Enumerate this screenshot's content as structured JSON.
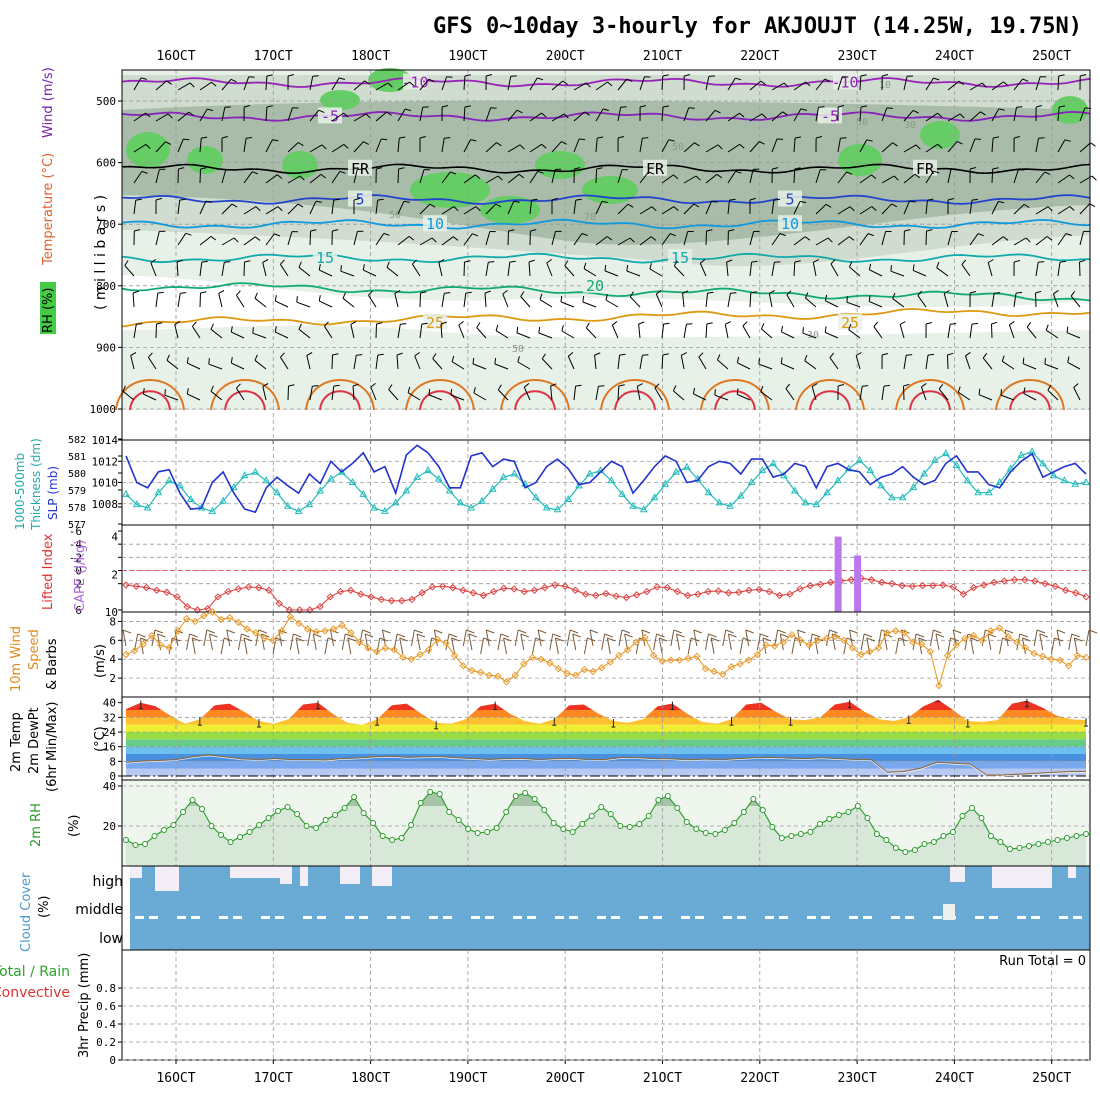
{
  "title": "GFS 0~10day 3-hourly for AKJOUJT (14.25W, 19.75N)",
  "time_axis": [
    "16OCT",
    "17OCT",
    "18OCT",
    "19OCT",
    "20OCT",
    "21OCT",
    "22OCT",
    "23OCT",
    "24OCT",
    "25OCT"
  ],
  "panel_labels": {
    "p1_rh": "RH (%)",
    "p1_temp": "Temperature (°C)",
    "p1_wind": "Wind (m/s)",
    "p1_units": "( m i l l i b a r s )",
    "p2_thick1": "1000-500mb",
    "p2_thick2": "Thickness (dm)",
    "p2_slp": "SLP (mb)",
    "p3_li": "Lifted Index",
    "p3_cape": "CAPE (J/kg)",
    "p4_a": "10m Wind",
    "p4_b": "Speed",
    "p4_c": "& Barbs",
    "p4_units": "(m/s)",
    "p5_a": "2m Temp",
    "p5_b": "2m DewPt",
    "p5_c": "(6hr Min/Max)",
    "p5_units": "(°C)",
    "p6_a": "2m RH",
    "p6_units": "(%)",
    "p7_a": "Cloud Cover",
    "p7_units": "(%)",
    "p8_a": "Total / Rain",
    "p8_b": "Convective",
    "p8_c": "3hr Precip (mm)",
    "run_total": "Run Total = 0"
  },
  "contour_labels": {
    "fr": "FR",
    "t_m10": "-10",
    "t_m5": "-5",
    "t_5": "5",
    "t_10": "10",
    "t_15": "15",
    "t_20": "20",
    "t_25": "25",
    "rh_50": "50",
    "rh_30": "30",
    "rh_70": "70",
    "rh_10": "10"
  },
  "colors": {
    "rh_dark": "#a9bca9",
    "rh_mid": "#cfdccf",
    "rh_light": "#e8f1e8",
    "rh_green": "#66cc66",
    "slp": "#2233cc",
    "thickness": "#22bbbb",
    "li": "#dd4444",
    "cape": "#bb77ee",
    "wind_speed": "#e89a2a",
    "dewpt": "#8a6a40",
    "rh2m": "#2a9a2a",
    "cloud": "#6aabd6",
    "cloud_gap": "#f3eef6"
  },
  "chart_data": [
    {
      "type": "heatmap",
      "title": "Pressure-level RH / Temperature / Wind",
      "ylabel": "millibars",
      "y_ticks": [
        500,
        600,
        700,
        800,
        900,
        1000
      ],
      "ylim": [
        450,
        1000
      ],
      "x": [
        "16OCT",
        "17OCT",
        "18OCT",
        "19OCT",
        "20OCT",
        "21OCT",
        "22OCT",
        "23OCT",
        "24OCT",
        "25OCT"
      ],
      "temperature_isotherms_c": [
        -10,
        -5,
        0,
        5,
        10,
        15,
        20,
        25,
        30,
        35
      ],
      "isotherm_levels_mb": {
        "-10": 470,
        "-5": 525,
        "0": 610,
        "5": 660,
        "10": 700,
        "15": 755,
        "20": 800,
        "25": 860
      }
    },
    {
      "type": "line",
      "title": "1000-500mb Thickness & SLP",
      "series": [
        {
          "name": "SLP (mb)",
          "axis": "right",
          "ylim": [
            1006,
            1014
          ],
          "values": [
            1012.5,
            1010,
            1009.5,
            1011,
            1011.2,
            1009,
            1007.5,
            1007.6,
            1010,
            1011,
            1009,
            1007.5,
            1007.2,
            1009.5,
            1010.5,
            1009.7,
            1009,
            1010.8,
            1009.9,
            1012,
            1011,
            1011.8,
            1012.8,
            1011,
            1011.5,
            1009,
            1012.6,
            1013.5,
            1012.8,
            1011.5,
            1009.5,
            1009.5,
            1012.5,
            1012.8,
            1011.5,
            1012.2,
            1012,
            1009.5,
            1010,
            1011.5,
            1012.2,
            1011.3,
            1009.8,
            1010,
            1011,
            1012,
            1011.5,
            1009,
            1010.2,
            1011.5,
            1012.5,
            1012,
            1010,
            1010.2,
            1011.5,
            1012,
            1011.8,
            1010.8,
            1012.2,
            1012.2,
            1010.5,
            1010.8,
            1011.8,
            1011.5,
            1009.5,
            1011.5,
            1011.8,
            1011.2,
            1011,
            1009.8,
            1010.5,
            1010.8,
            1011.5,
            1010.5,
            1009.8,
            1010.2,
            1011.8,
            1012.5,
            1011,
            1011,
            1009.8,
            1009.5,
            1011,
            1012,
            1012.7,
            1010.5,
            1011,
            1011.5,
            1011.8,
            1010.8
          ]
        },
        {
          "name": "1000-500mb Thickness (dm)",
          "axis": "left",
          "ylim": [
            577,
            582
          ],
          "values": [
            578.8,
            578.2,
            578.0,
            578.9,
            579.6,
            579.3,
            578.5,
            578.0,
            577.8,
            578.4,
            579.2,
            579.9,
            580.1,
            579.6,
            578.9,
            578.1,
            577.8,
            578.2,
            579.0,
            579.7,
            580.1,
            579.5,
            578.8,
            578.0,
            577.8,
            578.3,
            579.0,
            579.8,
            580.2,
            579.7,
            579.0,
            578.3,
            578.0,
            578.4,
            579.1,
            579.8,
            580.0,
            579.4,
            578.6,
            578.0,
            577.9,
            578.5,
            579.3,
            580.0,
            580.2,
            579.6,
            578.8,
            578.1,
            577.9,
            578.6,
            579.4,
            580.1,
            580.4,
            579.7,
            578.9,
            578.3,
            578.1,
            578.7,
            579.5,
            580.2,
            580.6,
            579.9,
            579.0,
            578.3,
            578.2,
            578.9,
            579.6,
            580.3,
            580.8,
            580.2,
            579.3,
            578.6,
            578.6,
            579.2,
            580.0,
            580.8,
            581.2,
            580.5,
            579.6,
            578.9,
            578.9,
            579.5,
            580.3,
            581.1,
            581.3,
            580.6,
            579.9,
            579.6,
            579.4,
            579.5
          ]
        }
      ]
    },
    {
      "type": "bar",
      "title": "Lifted Index & CAPE",
      "series": [
        {
          "name": "Lifted Index",
          "ylim": [
            6,
            -6
          ],
          "ticks": [
            6,
            2,
            0,
            -2,
            -4,
            -6
          ],
          "values": [
            2.2,
            2.4,
            2.6,
            3.0,
            3.3,
            4.0,
            5.5,
            6.0,
            5.8,
            4.0,
            3.2,
            2.8,
            2.5,
            2.6,
            3.0,
            5.0,
            6.0,
            6.0,
            6.0,
            5.5,
            4.0,
            3.2,
            3.0,
            3.6,
            4.0,
            4.4,
            4.6,
            4.6,
            4.4,
            3.4,
            2.5,
            2.4,
            2.6,
            3.0,
            3.4,
            3.8,
            3.2,
            2.7,
            2.8,
            3.2,
            3.0,
            2.6,
            2.2,
            2.4,
            3.0,
            3.6,
            3.8,
            3.5,
            3.9,
            4.1,
            3.7,
            3.2,
            2.5,
            2.6,
            3.2,
            3.8,
            3.6,
            3.2,
            3.1,
            3.4,
            3.3,
            3.0,
            2.9,
            3.2,
            3.8,
            3.6,
            2.8,
            2.3,
            2.1,
            1.8,
            1.6,
            1.4,
            1.2,
            1.4,
            1.8,
            2.0,
            2.3,
            2.4,
            2.3,
            2.3,
            2.2,
            2.5,
            3.6,
            2.6,
            2.2,
            1.8,
            1.6,
            1.4,
            1.4,
            1.6,
            2.0,
            2.4,
            3.0,
            3.4,
            4.0
          ]
        },
        {
          "name": "CAPE (J/kg)",
          "ylim": [
            0,
            4.3
          ],
          "ticks": [
            0,
            2,
            4
          ],
          "bars": [
            {
              "x": "22.8OCT",
              "value": 4.0
            },
            {
              "x": "23.0OCT",
              "value": 3.0
            }
          ]
        }
      ]
    },
    {
      "type": "line",
      "title": "10m Wind Speed & Barbs",
      "ylabel": "m/s",
      "ylim": [
        0,
        9
      ],
      "ticks": [
        2,
        4,
        6,
        8
      ],
      "values": [
        4.5,
        4.9,
        5.6,
        6.5,
        5.5,
        5.2,
        7.0,
        8.3,
        8.0,
        8.6,
        9.0,
        8.2,
        8.4,
        7.9,
        7.2,
        6.8,
        6.2,
        6.0,
        7.0,
        8.5,
        7.8,
        7.2,
        6.9,
        7.0,
        7.2,
        7.6,
        6.8,
        5.8,
        5.2,
        4.8,
        5.2,
        5.0,
        4.2,
        4.0,
        4.5,
        5.0,
        6.1,
        5.7,
        4.4,
        3.3,
        2.8,
        2.6,
        2.3,
        2.2,
        1.6,
        2.3,
        3.5,
        4.2,
        4.0,
        3.6,
        3.0,
        2.5,
        2.3,
        2.9,
        2.7,
        3.1,
        3.7,
        4.4,
        5.0,
        5.8,
        6.3,
        4.4,
        3.8,
        3.9,
        3.9,
        4.1,
        4.3,
        3.0,
        2.7,
        2.4,
        3.2,
        3.5,
        3.9,
        4.5,
        5.5,
        5.4,
        5.8,
        6.6,
        6.0,
        5.5,
        6.0,
        6.2,
        6.4,
        6.0,
        5.2,
        4.5,
        4.8,
        5.2,
        6.8,
        7.0,
        6.8,
        5.8,
        5.6,
        4.8,
        1.2,
        4.4,
        5.5,
        6.2,
        6.5,
        6.0,
        7.0,
        7.3,
        6.4,
        5.8,
        5.2,
        4.6,
        4.3,
        4.0,
        3.9,
        3.3,
        4.4,
        4.2
      ]
    },
    {
      "type": "area",
      "title": "2m Temp / 2m DewPt (6hr Min/Max)",
      "ylabel": "°C",
      "ylim": [
        0,
        42
      ],
      "ticks": [
        0,
        8,
        16,
        24,
        32,
        40
      ],
      "series": [
        {
          "name": "2m Temp",
          "values": [
            36.5,
            40,
            38,
            33,
            28.5,
            31,
            38.5,
            39.5,
            35,
            30,
            28.5,
            31,
            39,
            40,
            34,
            29,
            28,
            31,
            38.5,
            39.5,
            34,
            29,
            28.5,
            31,
            38,
            39.5,
            34,
            30,
            28.5,
            31,
            38.5,
            39,
            34,
            30,
            29,
            31,
            38,
            39.5,
            34,
            29.5,
            28.5,
            31,
            39,
            40,
            35,
            31,
            30.5,
            32,
            39,
            40.5,
            35,
            31,
            30,
            32,
            38,
            41.5,
            36,
            30,
            29.5,
            30.5,
            39.5,
            41,
            37.5,
            33,
            31,
            30.5
          ]
        },
        {
          "name": "2m DewPt",
          "values": [
            7.5,
            8.2,
            8.5,
            9.0,
            10.5,
            11.5,
            10.5,
            9.4,
            9.0,
            9.5,
            9.0,
            9.0,
            8.8,
            9.5,
            9.9,
            10.5,
            10.8,
            10.2,
            10.5,
            10.6,
            10.0,
            9.5,
            9.1,
            9.5,
            9.6,
            9.0,
            9.5,
            9.6,
            9.0,
            9.1,
            10.2,
            10.0,
            9.5,
            9.4,
            8.9,
            9.2,
            9.0,
            9.5,
            10.0,
            10.2,
            9.8,
            9.5,
            10.0,
            9.5,
            9.1,
            9.0,
            2.0,
            2.5,
            4.2,
            7.5,
            7.0,
            6.5,
            0.5,
            0.6,
            1.0,
            1.5,
            2.0,
            2.4,
            2.5
          ]
        }
      ]
    },
    {
      "type": "area",
      "title": "2m RH",
      "ylabel": "%",
      "ylim": [
        0,
        40
      ],
      "ticks": [
        20,
        40
      ],
      "values": [
        13,
        10.5,
        11,
        15,
        18,
        20.5,
        27,
        33,
        28.5,
        20,
        15.5,
        12,
        14.5,
        17,
        20.5,
        24,
        27.5,
        29.5,
        26,
        20,
        19,
        23,
        25.5,
        29,
        34.5,
        26.5,
        21.5,
        15,
        13,
        14,
        20.5,
        31.5,
        37,
        36,
        27,
        23,
        18.5,
        16.5,
        17,
        19,
        27,
        35,
        36.5,
        33.5,
        28,
        21.5,
        18.5,
        17,
        21,
        25,
        29.5,
        26,
        20,
        19.5,
        21,
        25,
        33,
        35,
        29,
        22,
        18.5,
        16.5,
        16,
        18,
        21.5,
        27,
        33.5,
        28,
        19.5,
        14,
        15,
        16,
        17,
        21,
        23.5,
        25.5,
        27,
        30,
        24,
        16,
        13,
        9,
        7,
        8,
        11,
        12,
        15,
        17,
        25,
        29,
        24,
        15,
        12,
        8.5,
        9,
        10,
        11,
        12,
        13,
        14,
        15,
        16
      ]
    },
    {
      "type": "heatmap",
      "title": "Cloud Cover",
      "ylabel": "%",
      "rows": [
        "high",
        "middle",
        "low"
      ]
    },
    {
      "type": "bar",
      "title": "3hr Precip (mm)",
      "ylabel": "3hr Precip (mm)",
      "ylim": [
        0,
        1.0
      ],
      "ticks": [
        0,
        0.2,
        0.4,
        0.6,
        0.8
      ],
      "run_total_mm": 0,
      "values": []
    }
  ]
}
